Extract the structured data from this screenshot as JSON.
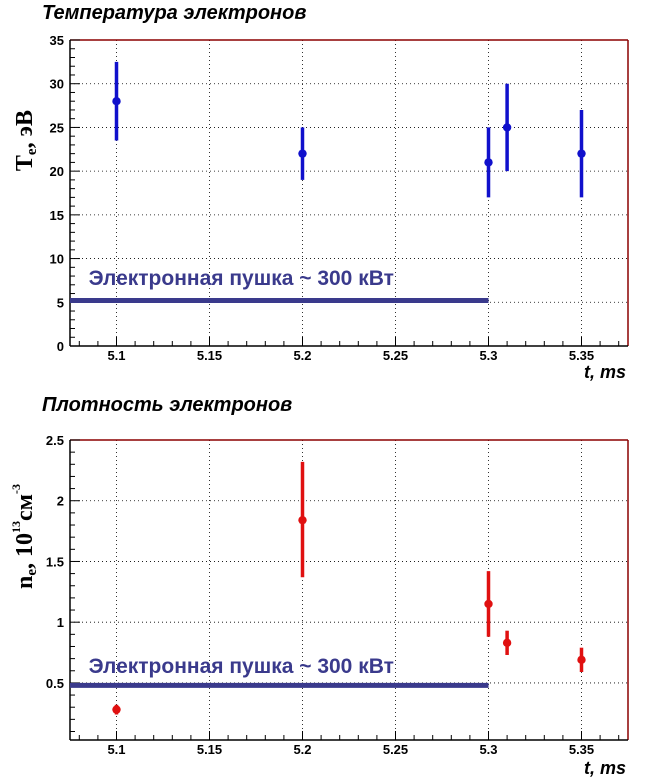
{
  "chart_data": [
    {
      "type": "scatter",
      "title": "Температура электронов",
      "xlabel": "t, ms",
      "ylabel": "Te, эВ",
      "ylabel_main": "T",
      "ylabel_sub": "e",
      "ylabel_rest": ", эВ",
      "xlim": [
        5.075,
        5.375
      ],
      "ylim": [
        0,
        35
      ],
      "x_ticks": [
        5.1,
        5.15,
        5.2,
        5.25,
        5.3,
        5.35
      ],
      "x_tick_labels": [
        "5.1",
        "5.15",
        "5.2",
        "5.25",
        "5.3",
        "5.35"
      ],
      "y_ticks": [
        0,
        5,
        10,
        15,
        20,
        25,
        30,
        35
      ],
      "y_tick_labels": [
        "0",
        "5",
        "10",
        "15",
        "20",
        "25",
        "30",
        "35"
      ],
      "grid": true,
      "series": [
        {
          "color": "#1010cc",
          "points": [
            {
              "x": 5.1,
              "y": 28,
              "err_low": 23.5,
              "err_high": 32.5
            },
            {
              "x": 5.2,
              "y": 22,
              "err_low": 19,
              "err_high": 25
            },
            {
              "x": 5.3,
              "y": 21,
              "err_low": 17,
              "err_high": 25
            },
            {
              "x": 5.31,
              "y": 25,
              "err_low": 20,
              "err_high": 30
            },
            {
              "x": 5.35,
              "y": 22,
              "err_low": 17,
              "err_high": 27
            }
          ]
        }
      ],
      "annotation": {
        "text": "Электронная пушка ~ 300 кВт",
        "line_color": "#3a3a8c",
        "line_y": 5.2,
        "line_x_start": 5.075,
        "line_x_end": 5.3,
        "text_x": 5.085,
        "text_y": 7.0
      }
    },
    {
      "type": "scatter",
      "title": "Плотность электронов",
      "xlabel": "t, ms",
      "ylabel": "ne, 10^13 см^-3",
      "ylabel_main": "n",
      "ylabel_sub": "e",
      "ylabel_rest": ", 10",
      "ylabel_exp": "13",
      "ylabel_unit": "см",
      "ylabel_unit_exp": "-3",
      "xlim": [
        5.075,
        5.375
      ],
      "ylim": [
        0.03,
        2.5
      ],
      "x_ticks": [
        5.1,
        5.15,
        5.2,
        5.25,
        5.3,
        5.35
      ],
      "x_tick_labels": [
        "5.1",
        "5.15",
        "5.2",
        "5.25",
        "5.3",
        "5.35"
      ],
      "y_ticks": [
        0.5,
        1,
        1.5,
        2,
        2.5
      ],
      "y_tick_labels": [
        "0.5",
        "1",
        "1.5",
        "2",
        "2.5"
      ],
      "grid": true,
      "series": [
        {
          "color": "#e01010",
          "points": [
            {
              "x": 5.1,
              "y": 0.28,
              "err_low": 0.24,
              "err_high": 0.32
            },
            {
              "x": 5.2,
              "y": 1.84,
              "err_low": 1.37,
              "err_high": 2.32
            },
            {
              "x": 5.3,
              "y": 1.15,
              "err_low": 0.88,
              "err_high": 1.42
            },
            {
              "x": 5.31,
              "y": 0.83,
              "err_low": 0.73,
              "err_high": 0.93
            },
            {
              "x": 5.35,
              "y": 0.69,
              "err_low": 0.59,
              "err_high": 0.79
            }
          ]
        }
      ],
      "annotation": {
        "text": "Электронная пушка ~ 300 кВт",
        "line_color": "#3a3a8c",
        "line_y": 0.48,
        "line_x_start": 5.075,
        "line_x_end": 5.3,
        "text_x": 5.085,
        "text_y": 0.58
      }
    }
  ]
}
